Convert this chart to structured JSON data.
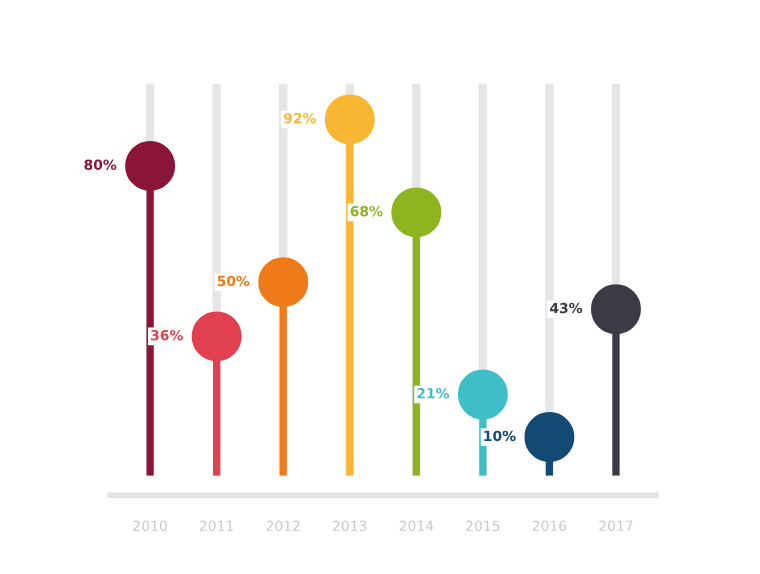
{
  "chart_data": {
    "type": "lollipop",
    "categories": [
      "2010",
      "2011",
      "2012",
      "2013",
      "2014",
      "2015",
      "2016",
      "2017"
    ],
    "values": [
      80,
      36,
      50,
      92,
      68,
      21,
      10,
      43
    ],
    "value_labels": [
      "80%",
      "36%",
      "50%",
      "92%",
      "68%",
      "21%",
      "10%",
      "43%"
    ],
    "colors": [
      "#8b1538",
      "#e0404f",
      "#ee7a1a",
      "#f8b732",
      "#8cb51f",
      "#3fbec8",
      "#124a73",
      "#3b3b45"
    ],
    "grid": "x",
    "marker": "circle",
    "legend": false
  }
}
